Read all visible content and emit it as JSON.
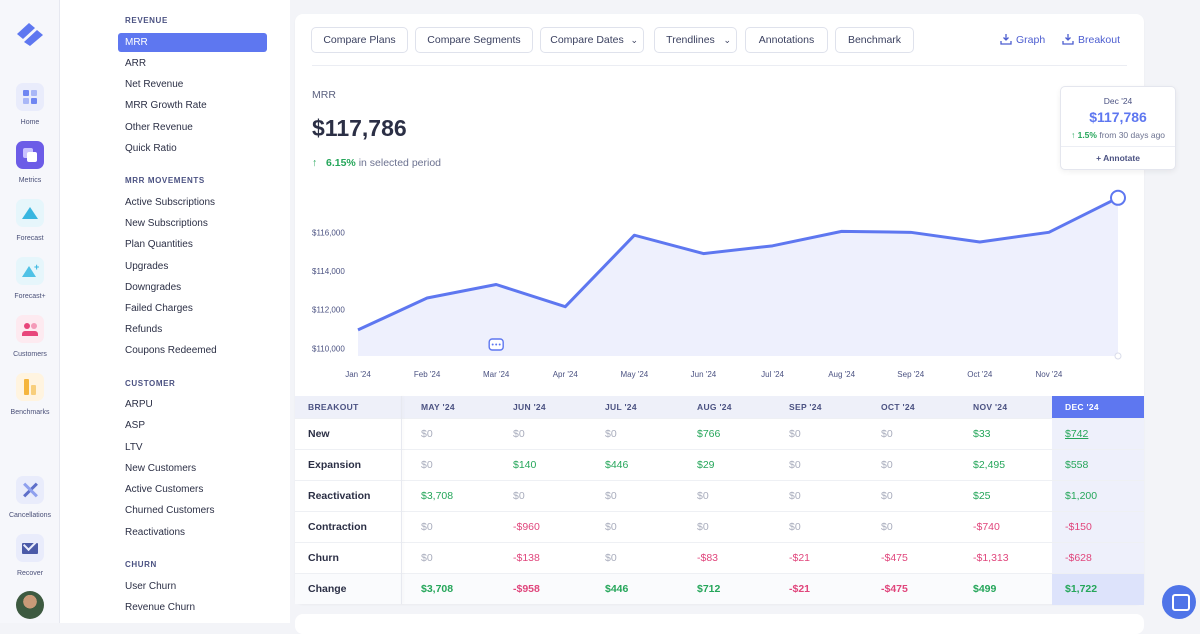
{
  "rail": {
    "items": [
      {
        "label": "Home",
        "icon": "home-icon"
      },
      {
        "label": "Metrics",
        "icon": "metrics-icon"
      },
      {
        "label": "Forecast",
        "icon": "forecast-icon"
      },
      {
        "label": "Forecast+",
        "icon": "forecast-plus-icon"
      },
      {
        "label": "Customers",
        "icon": "customers-icon"
      },
      {
        "label": "Benchmarks",
        "icon": "benchmarks-icon"
      },
      {
        "label": "Cancellations",
        "icon": "cancellations-icon"
      },
      {
        "label": "Recover",
        "icon": "recover-icon"
      }
    ]
  },
  "sidebar": {
    "sections": [
      {
        "title": "REVENUE",
        "items": [
          "MRR",
          "ARR",
          "Net Revenue",
          "MRR Growth Rate",
          "Other Revenue",
          "Quick Ratio"
        ]
      },
      {
        "title": "MRR MOVEMENTS",
        "items": [
          "Active Subscriptions",
          "New Subscriptions",
          "Plan Quantities",
          "Upgrades",
          "Downgrades",
          "Failed Charges",
          "Refunds",
          "Coupons Redeemed"
        ]
      },
      {
        "title": "CUSTOMER",
        "items": [
          "ARPU",
          "ASP",
          "LTV",
          "New Customers",
          "Active Customers",
          "Churned Customers",
          "Reactivations"
        ]
      },
      {
        "title": "CHURN",
        "items": [
          "User Churn",
          "Revenue Churn"
        ]
      }
    ],
    "active": "MRR"
  },
  "toolbar": {
    "compare_plans": "Compare Plans",
    "compare_segments": "Compare Segments",
    "compare_dates": "Compare Dates",
    "trendlines": "Trendlines",
    "annotations": "Annotations",
    "benchmark": "Benchmark",
    "graph": "Graph",
    "breakout": "Breakout"
  },
  "metric": {
    "name": "MRR",
    "value": "$117,786",
    "change_pct": "6.15%",
    "change_text": "in selected period"
  },
  "tooltip": {
    "date": "Dec '24",
    "value": "$117,786",
    "change_pct": "1.5%",
    "change_text": "from 30 days ago",
    "annotate": "+ Annotate"
  },
  "chart_data": {
    "type": "area",
    "x": [
      "Jan '24",
      "Feb '24",
      "Mar '24",
      "Apr '24",
      "May '24",
      "Jun '24",
      "Jul '24",
      "Aug '24",
      "Sep '24",
      "Oct '24",
      "Nov '24",
      "Dec '24"
    ],
    "values": [
      110950,
      112600,
      113300,
      112150,
      115850,
      114900,
      115300,
      116050,
      116000,
      115500,
      116000,
      117786
    ],
    "ylim": [
      109600,
      118500
    ],
    "yticks": [
      110000,
      112000,
      114000,
      116000
    ],
    "ytick_labels": [
      "$110,000",
      "$112,000",
      "$114,000",
      "$116,000"
    ],
    "color": "#5e77f0",
    "fill": "#eef0fd",
    "annotation_marker_at": "Mar '24"
  },
  "breakout": {
    "header": "BREAKOUT",
    "months": [
      "MAY '24",
      "JUN '24",
      "JUL '24",
      "AUG '24",
      "SEP '24",
      "OCT '24",
      "NOV '24",
      "DEC '24"
    ],
    "rows": [
      {
        "label": "New",
        "values": [
          "$0",
          "$0",
          "$0",
          "$766",
          "$0",
          "$0",
          "$33",
          "$742"
        ]
      },
      {
        "label": "Expansion",
        "values": [
          "$0",
          "$140",
          "$446",
          "$29",
          "$0",
          "$0",
          "$2,495",
          "$558"
        ]
      },
      {
        "label": "Reactivation",
        "values": [
          "$3,708",
          "$0",
          "$0",
          "$0",
          "$0",
          "$0",
          "$25",
          "$1,200"
        ]
      },
      {
        "label": "Contraction",
        "values": [
          "$0",
          "-$960",
          "$0",
          "$0",
          "$0",
          "$0",
          "-$740",
          "-$150"
        ]
      },
      {
        "label": "Churn",
        "values": [
          "$0",
          "-$138",
          "$0",
          "-$83",
          "-$21",
          "-$475",
          "-$1,313",
          "-$628"
        ]
      },
      {
        "label": "Change",
        "values": [
          "$3,708",
          "-$958",
          "$446",
          "$712",
          "-$21",
          "-$475",
          "$499",
          "$1,722"
        ]
      }
    ]
  }
}
